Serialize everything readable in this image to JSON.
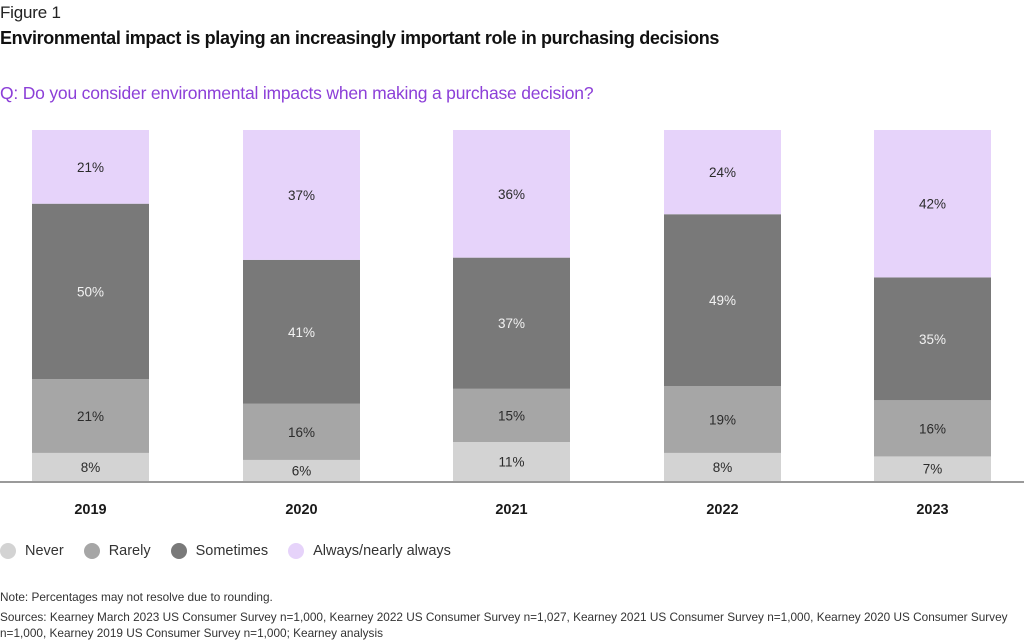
{
  "figure_label": "Figure 1",
  "title": "Environmental impact is playing an increasingly important role in purchasing decisions",
  "question": "Q: Do you consider environmental impacts when making a purchase decision?",
  "note": "Note: Percentages may not resolve due to rounding.",
  "sources": "Sources: Kearney March 2023 US Consumer Survey n=1,000, Kearney 2022 US Consumer Survey n=1,027, Kearney 2021 US Consumer Survey n=1,000, Kearney 2020 US Consumer Survey n=1,000, Kearney 2019 US Consumer Survey n=1,000; Kearney analysis",
  "colors": {
    "never": "#d3d3d3",
    "rarely": "#a6a6a6",
    "sometimes": "#797979",
    "always": "#e6d3fa",
    "question_text": "#8c3fd8"
  },
  "legend": [
    {
      "key": "never",
      "label": "Never"
    },
    {
      "key": "rarely",
      "label": "Rarely"
    },
    {
      "key": "sometimes",
      "label": "Sometimes"
    },
    {
      "key": "always",
      "label": "Always/nearly always"
    }
  ],
  "chart_data": {
    "type": "bar",
    "stacked": true,
    "normalized": true,
    "title": "Environmental impact is playing an increasingly important role in purchasing decisions",
    "subtitle": "Q: Do you consider environmental impacts when making a purchase decision?",
    "xlabel": "",
    "ylabel": "",
    "ylim": [
      0,
      100
    ],
    "grid": false,
    "legend_position": "bottom-left",
    "categories": [
      "2019",
      "2020",
      "2021",
      "2022",
      "2023"
    ],
    "series": [
      {
        "key": "never",
        "name": "Never",
        "values": [
          8,
          6,
          11,
          8,
          7
        ],
        "labels": [
          "8%",
          "6%",
          "11%",
          "8%",
          "7%"
        ]
      },
      {
        "key": "rarely",
        "name": "Rarely",
        "values": [
          21,
          16,
          15,
          19,
          16
        ],
        "labels": [
          "21%",
          "16%",
          "15%",
          "19%",
          "16%"
        ]
      },
      {
        "key": "sometimes",
        "name": "Sometimes",
        "values": [
          50,
          41,
          37,
          49,
          35
        ],
        "labels": [
          "50%",
          "41%",
          "37%",
          "49%",
          "35%"
        ]
      },
      {
        "key": "always",
        "name": "Always/nearly always",
        "values": [
          21,
          37,
          36,
          24,
          42
        ],
        "labels": [
          "21%",
          "37%",
          "36%",
          "24%",
          "42%"
        ]
      }
    ]
  }
}
